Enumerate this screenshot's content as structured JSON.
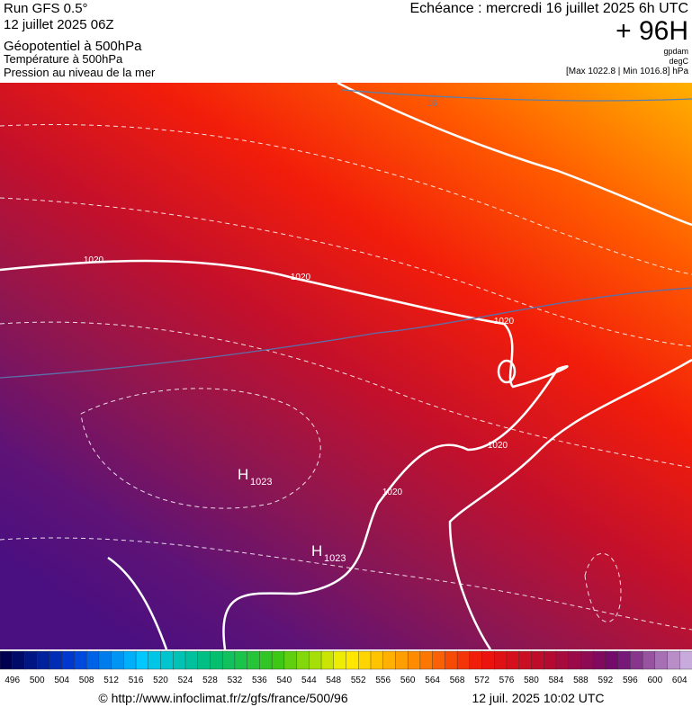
{
  "header": {
    "run": "Run GFS 0.5°",
    "date": "12 juillet 2025 06Z",
    "layer1": "Géopotentiel à 500hPa",
    "layer2": "Température à 500hPa",
    "layer3": "Pression au niveau de la mer",
    "forecast": "Echéance : mercredi 16 juillet 2025 6h UTC",
    "lead": "+ 96H",
    "unit1": "gpdam",
    "unit2": "degC",
    "range": "[Max 1022.8 | Min 1016.8] hPa"
  },
  "map": {
    "isobar_labels": [
      "1020",
      "1020",
      "1020",
      "1020",
      "1020"
    ],
    "isotherm_labels": [
      "16"
    ],
    "highs": [
      {
        "letter": "H",
        "value": "1023"
      },
      {
        "letter": "H",
        "value": "1023"
      }
    ]
  },
  "legend": {
    "labels": [
      496,
      500,
      504,
      508,
      512,
      516,
      520,
      524,
      528,
      532,
      536,
      540,
      544,
      548,
      552,
      556,
      560,
      564,
      568,
      572,
      576,
      580,
      584,
      588,
      592,
      596,
      600,
      604
    ]
  },
  "footer": {
    "source": "© http://www.infoclimat.fr/z/gfs/france/500/96",
    "generated": "12 juil. 2025 10:02 UTC"
  }
}
